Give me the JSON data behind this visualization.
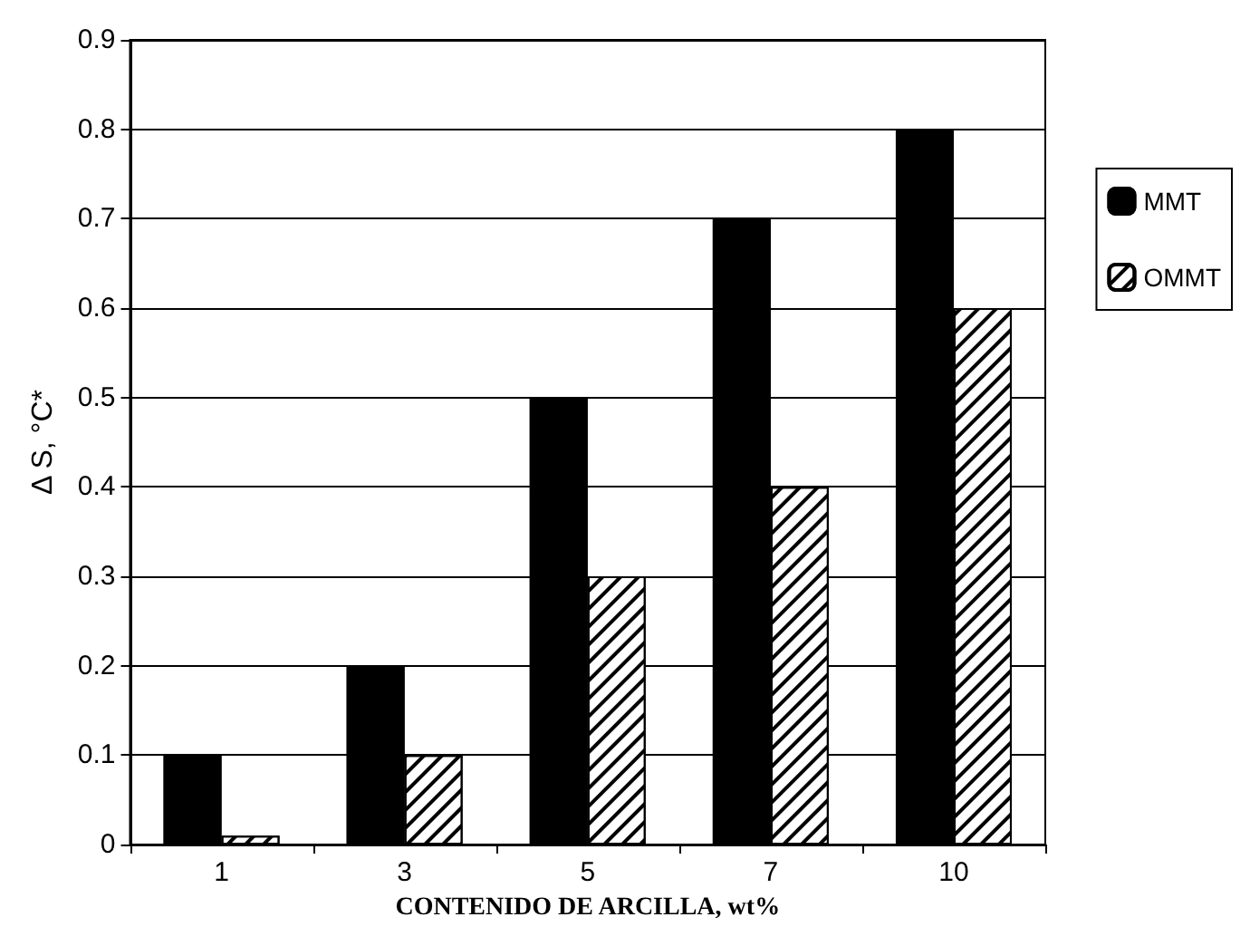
{
  "chart_data": {
    "type": "bar",
    "xlabel": "CONTENIDO DE ARCILLA, wt%",
    "ylabel": "Δ S, °C*",
    "categories": [
      "1",
      "3",
      "5",
      "7",
      "10"
    ],
    "series": [
      {
        "name": "MMT",
        "color": "#000000",
        "values": [
          0.1,
          0.2,
          0.5,
          0.7,
          0.8
        ]
      },
      {
        "name": "OMMT",
        "color": "#ffffff",
        "values": [
          0.01,
          0.1,
          0.3,
          0.4,
          0.6
        ]
      }
    ],
    "ylim": [
      0,
      0.9
    ],
    "yticks": [
      0,
      0.1,
      0.2,
      0.3,
      0.4,
      0.5,
      0.6,
      0.7,
      0.8,
      0.9
    ],
    "grid": "y",
    "legend": "right"
  }
}
